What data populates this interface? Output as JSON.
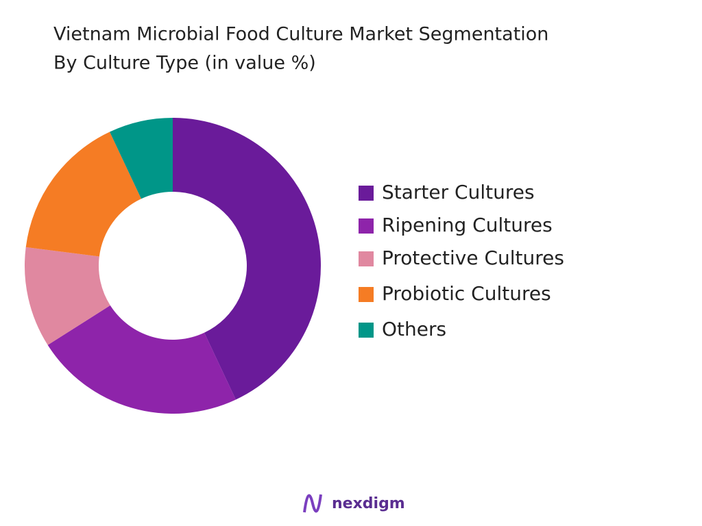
{
  "chart_data": {
    "type": "donut",
    "title": "Vietnam Microbial Food Culture Market Segmentation",
    "subtitle": "By Culture Type (in value %)",
    "categories": [
      "Starter Cultures",
      "Ripening Cultures",
      "Protective Cultures",
      "Probiotic Cultures",
      "Others"
    ],
    "values": [
      43,
      23,
      11,
      16,
      7
    ],
    "colors": [
      "#6a1b9a",
      "#8e24aa",
      "#e088a0",
      "#f57c24",
      "#009688"
    ],
    "legend": "right"
  },
  "brand": "nexdigm"
}
